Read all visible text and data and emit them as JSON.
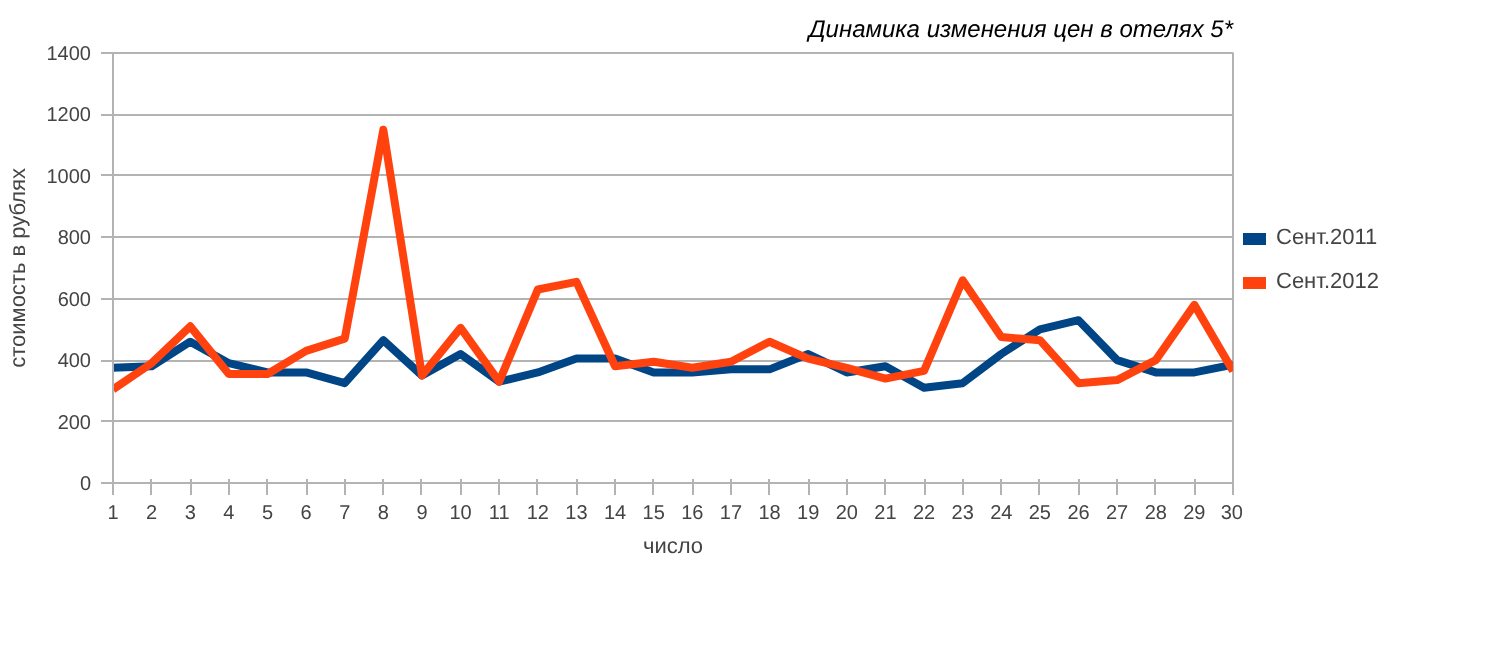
{
  "chart_data": {
    "type": "line",
    "title": "Динамика изменения цен в отелях 5*",
    "xlabel": "число",
    "ylabel": "стоимость в рублях",
    "x": [
      1,
      2,
      3,
      4,
      5,
      6,
      7,
      8,
      9,
      10,
      11,
      12,
      13,
      14,
      15,
      16,
      17,
      18,
      19,
      20,
      21,
      22,
      23,
      24,
      25,
      26,
      27,
      28,
      29,
      30
    ],
    "xlim": [
      1,
      30
    ],
    "xticks": [
      1,
      2,
      3,
      4,
      5,
      6,
      7,
      8,
      9,
      10,
      11,
      12,
      13,
      14,
      15,
      16,
      17,
      18,
      19,
      20,
      21,
      22,
      23,
      24,
      25,
      26,
      27,
      28,
      29,
      30
    ],
    "ylim": [
      0,
      1400
    ],
    "yticks": [
      0,
      200,
      400,
      600,
      800,
      1000,
      1200,
      1400
    ],
    "grid": "y",
    "legend": "right",
    "marker": "none",
    "line_style": "solid",
    "series": [
      {
        "name": "Сент.2011",
        "color": "#004586",
        "values": [
          375,
          380,
          460,
          390,
          360,
          360,
          325,
          465,
          350,
          420,
          330,
          360,
          405,
          405,
          360,
          360,
          370,
          370,
          420,
          360,
          380,
          310,
          325,
          420,
          500,
          530,
          400,
          360,
          360,
          385
        ]
      },
      {
        "name": "Сент.2012",
        "color": "#ff420e",
        "values": [
          305,
          390,
          510,
          355,
          355,
          430,
          470,
          1150,
          350,
          505,
          330,
          630,
          655,
          380,
          395,
          375,
          395,
          460,
          405,
          375,
          340,
          365,
          660,
          475,
          465,
          325,
          335,
          400,
          580,
          365
        ]
      }
    ]
  }
}
